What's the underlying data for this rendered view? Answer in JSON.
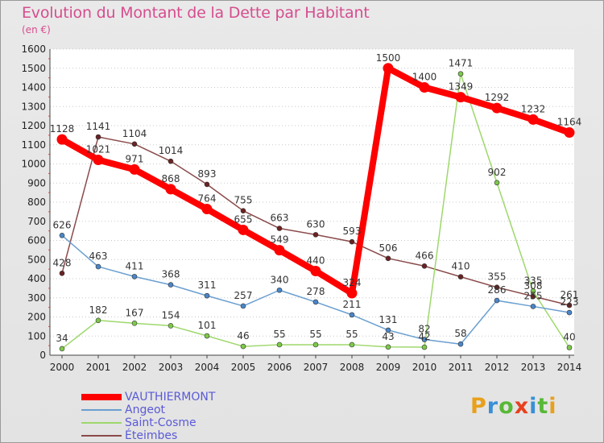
{
  "header": {
    "title": "Evolution du Montant de la Dette par Habitant",
    "unit": "(en €)"
  },
  "logo": {
    "text": "Proxiti",
    "colors": [
      "#e8a01c",
      "#3a8fd6",
      "#58b837",
      "#e8401c",
      "#3a8fd6",
      "#58b837",
      "#e8a01c"
    ]
  },
  "chart_data": {
    "type": "line",
    "x": [
      "2000",
      "2001",
      "2002",
      "2003",
      "2004",
      "2005",
      "2006",
      "2007",
      "2008",
      "2009",
      "2010",
      "2011",
      "2012",
      "2013",
      "2014"
    ],
    "ylim": [
      0,
      1600
    ],
    "yticks": [
      0,
      100,
      200,
      300,
      400,
      500,
      600,
      700,
      800,
      900,
      1000,
      1100,
      1200,
      1300,
      1400,
      1500,
      1600
    ],
    "grid": "horizontal dotted",
    "legend_placement": "bottom-left",
    "series": [
      {
        "name": "VAUTHIERMONT",
        "color": "#ff0000",
        "marker": "#ff0000",
        "values": [
          1128,
          1021,
          971,
          868,
          764,
          655,
          549,
          440,
          324,
          1500,
          1400,
          1349,
          1292,
          1232,
          1164
        ]
      },
      {
        "name": "Angeot",
        "color": "#6a9fd0",
        "marker": "#4a86c8",
        "values": [
          626,
          463,
          411,
          368,
          311,
          257,
          340,
          278,
          211,
          131,
          82,
          58,
          286,
          255,
          223
        ]
      },
      {
        "name": "Saint-Cosme",
        "color": "#9ed86c",
        "marker": "#7dc94a",
        "values": [
          34,
          182,
          167,
          154,
          101,
          46,
          55,
          55,
          55,
          43,
          42,
          1471,
          902,
          335,
          40
        ]
      },
      {
        "name": "Éteimbes",
        "color": "#8a4a4a",
        "marker": "#6b2222",
        "values": [
          428,
          1141,
          1104,
          1014,
          893,
          755,
          663,
          630,
          593,
          506,
          466,
          410,
          355,
          308,
          261
        ]
      }
    ]
  }
}
